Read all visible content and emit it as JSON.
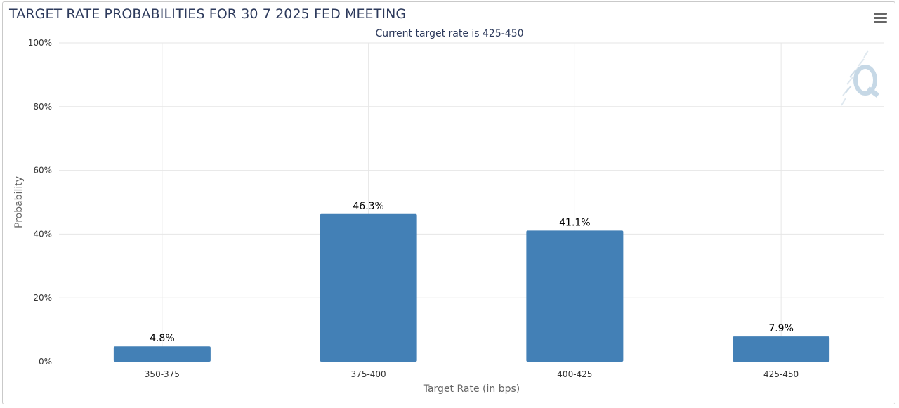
{
  "title": "TARGET RATE PROBABILITIES FOR 30 7 2025 FED MEETING",
  "subtitle": "Current target rate is 425-450",
  "menu_icon": "hamburger-menu-icon",
  "watermark_icon": "q-logo-watermark-icon",
  "chart_data": {
    "type": "bar",
    "title": "TARGET RATE PROBABILITIES FOR 30 7 2025 FED MEETING",
    "subtitle": "Current target rate is 425-450",
    "categories": [
      "350-375",
      "375-400",
      "400-425",
      "425-450"
    ],
    "values": [
      4.8,
      46.3,
      41.1,
      7.9
    ],
    "data_labels": [
      "4.8%",
      "46.3%",
      "41.1%",
      "7.9%"
    ],
    "xlabel": "Target Rate (in bps)",
    "ylabel": "Probability",
    "ylim": [
      0,
      100
    ],
    "yticks": [
      0,
      20,
      40,
      60,
      80,
      100
    ],
    "ytick_labels": [
      "0%",
      "20%",
      "40%",
      "60%",
      "80%",
      "100%"
    ],
    "grid": true,
    "legend": "none",
    "bar_color": "#4380b6"
  }
}
